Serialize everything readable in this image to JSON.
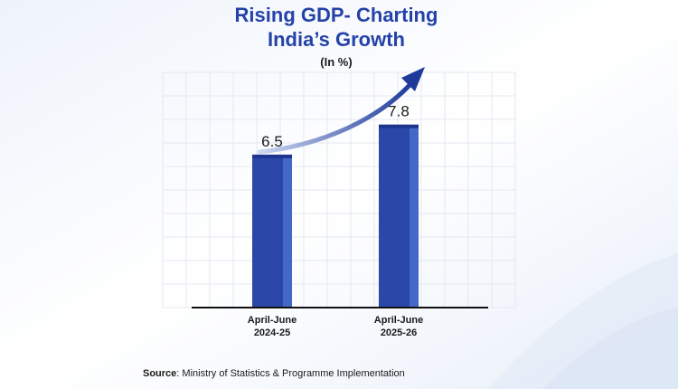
{
  "chart_data": {
    "type": "bar",
    "title_lines": [
      "Rising GDP- Charting",
      "India’s Growth"
    ],
    "subtitle": "(In %)",
    "categories": [
      [
        "April-June",
        "2024-25"
      ],
      [
        "April-June",
        "2025-26"
      ]
    ],
    "values": [
      6.5,
      7.8
    ],
    "value_labels": [
      "6.5",
      "7.8"
    ],
    "ylim": [
      0,
      9
    ],
    "grid": true,
    "trend_arrow": true,
    "colors": {
      "title": "#2442a8",
      "bar_front": "#2b47a8",
      "bar_side": "#4468c8",
      "bar_top": "#1e3590",
      "arrow": "#1f3a9c",
      "grid": "#e4e8f0"
    }
  },
  "source": {
    "label": "Source",
    "text": ": Ministry of Statistics & Programme Implementation"
  }
}
